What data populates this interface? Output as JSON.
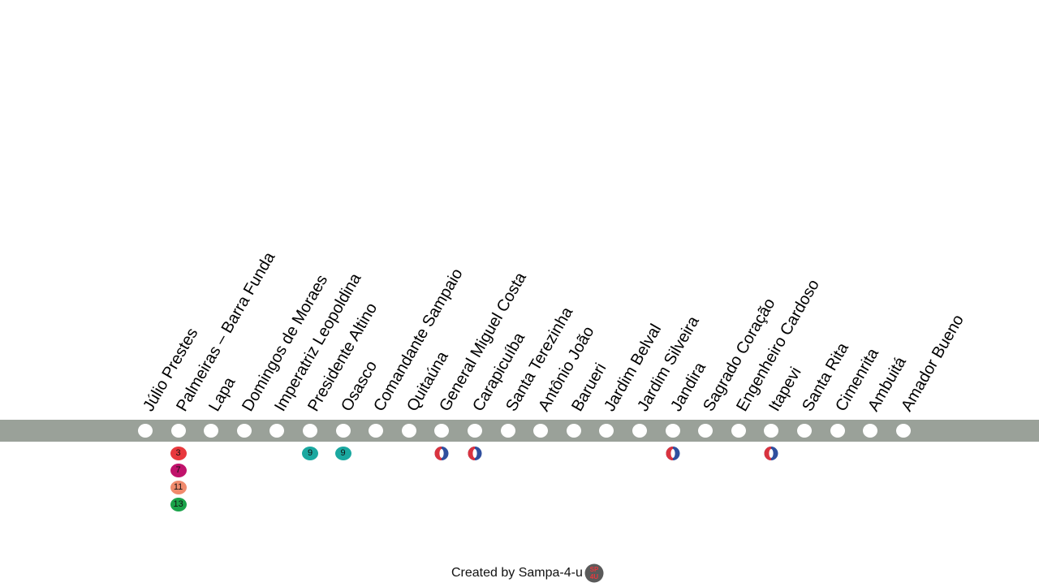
{
  "line": {
    "color": "#9aa199"
  },
  "stations": [
    {
      "name": "Júlio Prestes",
      "connections": []
    },
    {
      "name": "Palmeiras – Barra Funda",
      "connections": [
        {
          "label": "3",
          "color": "#e8383d"
        },
        {
          "label": "7",
          "color": "#c0126b"
        },
        {
          "label": "11",
          "color": "#f08a6c"
        },
        {
          "label": "13",
          "color": "#1aa34a"
        }
      ]
    },
    {
      "name": "Lapa",
      "connections": []
    },
    {
      "name": "Domingos de Moraes",
      "connections": []
    },
    {
      "name": "Imperatriz Leopoldina",
      "connections": []
    },
    {
      "name": "Presidente Altino",
      "connections": [
        {
          "label": "9",
          "color": "#1aa8a0"
        }
      ]
    },
    {
      "name": "Osasco",
      "connections": [
        {
          "label": "9",
          "color": "#1aa8a0"
        }
      ]
    },
    {
      "name": "Comandante Sampaio",
      "connections": []
    },
    {
      "name": "Quitaúna",
      "connections": []
    },
    {
      "name": "General Miguel Costa",
      "connections": [
        {
          "icon": "emtu-bus-icon"
        }
      ]
    },
    {
      "name": "Carapicuíba",
      "connections": [
        {
          "icon": "emtu-bus-icon"
        }
      ]
    },
    {
      "name": "Santa Terezinha",
      "connections": []
    },
    {
      "name": "Antônio João",
      "connections": []
    },
    {
      "name": "Barueri",
      "connections": []
    },
    {
      "name": "Jardim Belval",
      "connections": []
    },
    {
      "name": "Jardim Silveira",
      "connections": []
    },
    {
      "name": "Jandira",
      "connections": [
        {
          "icon": "emtu-bus-icon"
        }
      ]
    },
    {
      "name": "Sagrado Coração",
      "connections": []
    },
    {
      "name": "Engenheiro Cardoso",
      "connections": []
    },
    {
      "name": "Itapevi",
      "connections": [
        {
          "icon": "emtu-bus-icon"
        }
      ]
    },
    {
      "name": "Santa Rita",
      "connections": []
    },
    {
      "name": "Cimenrita",
      "connections": []
    },
    {
      "name": "Ambuitá",
      "connections": []
    },
    {
      "name": "Amador Bueno",
      "connections": []
    }
  ],
  "footer": {
    "text": "Created by Sampa-4-u",
    "logo_text": "SP4U",
    "logo_icon": "sampa-4-u-logo-icon"
  }
}
